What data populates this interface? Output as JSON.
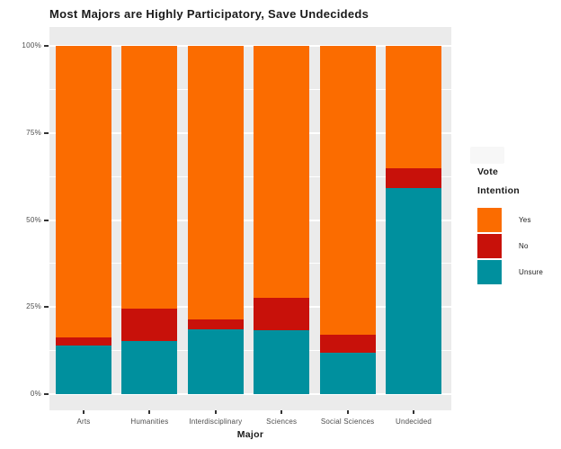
{
  "title": "Most Majors are Highly Participatory, Save Undecideds",
  "x_axis_label": "Major",
  "y_axis": {
    "ticks": [
      {
        "label": "100%",
        "value": 100
      },
      {
        "label": "75%",
        "value": 75
      },
      {
        "label": "50%",
        "value": 50
      },
      {
        "label": "25%",
        "value": 25
      },
      {
        "label": "0%",
        "value": 0
      }
    ]
  },
  "legend": {
    "title_line1": "Vote",
    "title_line2": "Intention",
    "items": [
      {
        "label": "Yes",
        "color": "#FB6C00"
      },
      {
        "label": "No",
        "color": "#C8110A"
      },
      {
        "label": "Unsure",
        "color": "#00909E"
      }
    ]
  },
  "colors": {
    "panel_background": "#EBEBEB",
    "gridline": "#FFFFFF",
    "axis_text": "#4D4D4D",
    "title_text": "#1A1A1A",
    "tick_mark": "#333333",
    "background": "#FFFFFF"
  },
  "chart_data": {
    "type": "bar",
    "stacked": true,
    "normalized_percent": true,
    "title": "Most Majors are Highly Participatory, Save Undecideds",
    "xlabel": "Major",
    "ylabel": "",
    "ylim": [
      0,
      100
    ],
    "grid": true,
    "legend_position": "right",
    "legend_title": "Vote Intention",
    "categories": [
      "Arts",
      "Humanities",
      "Interdisciplinary",
      "Sciences",
      "Social Sciences",
      "Undecided"
    ],
    "series": [
      {
        "name": "Yes",
        "color": "#FB6C00",
        "values": [
          83.7,
          75.5,
          78.6,
          72.4,
          82.9,
          35.1
        ]
      },
      {
        "name": "No",
        "color": "#C8110A",
        "values": [
          2.3,
          9.3,
          2.8,
          9.3,
          5.2,
          5.7
        ]
      },
      {
        "name": "Unsure",
        "color": "#00909E",
        "values": [
          14.0,
          15.2,
          18.6,
          18.3,
          11.9,
          59.2
        ]
      }
    ],
    "y_major_gridlines": [
      0,
      25,
      50,
      75,
      100
    ],
    "y_minor_gridlines": [
      12.5,
      37.5,
      62.5,
      87.5
    ]
  }
}
